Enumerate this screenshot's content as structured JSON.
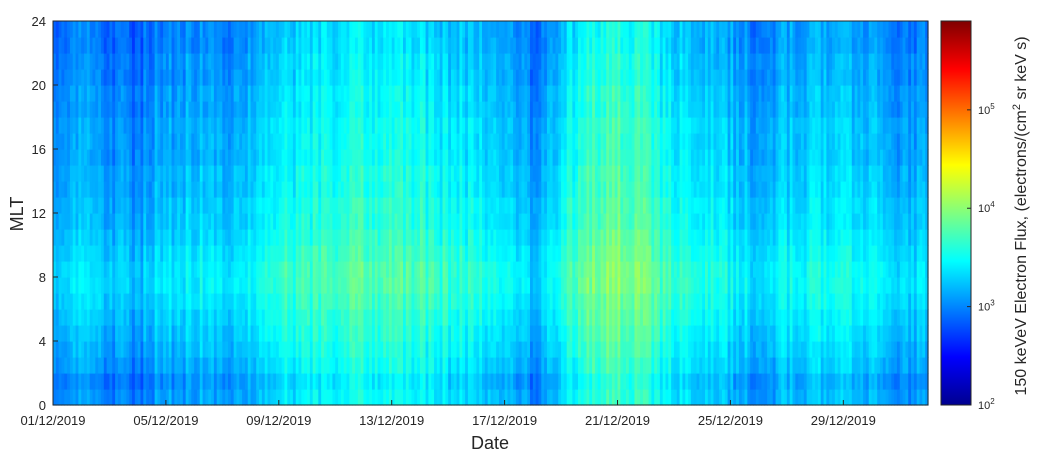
{
  "chart_data": {
    "type": "heatmap",
    "xlabel": "Date",
    "ylabel": "MLT",
    "x_tick_labels": [
      "01/12/2019",
      "05/12/2019",
      "09/12/2019",
      "13/12/2019",
      "17/12/2019",
      "21/12/2019",
      "25/12/2019",
      "29/12/2019"
    ],
    "x_ticks_days": [
      0,
      4,
      8,
      12,
      16,
      20,
      24,
      28
    ],
    "xlim_days": [
      0,
      31
    ],
    "y_ticks": [
      "0",
      "4",
      "8",
      "12",
      "16",
      "20",
      "24"
    ],
    "ylim": [
      0,
      24
    ],
    "colorbar": {
      "label_prefix": "150 keVeV Electron Flux, (electrons/(cm",
      "label_sup": "2",
      "label_suffix": " sr keV s)",
      "scale": "log",
      "range": [
        100,
        800000
      ],
      "tick_bases": [
        "10",
        "10",
        "10",
        "10"
      ],
      "tick_exponents": [
        "2",
        "3",
        "4",
        "5"
      ],
      "colormap": "jet"
    },
    "mean_log10_flux_by_day": [
      3.05,
      3.15,
      3.1,
      3.05,
      3.2,
      3.25,
      3.2,
      3.25,
      3.45,
      3.5,
      3.55,
      3.6,
      3.55,
      3.55,
      3.45,
      3.4,
      3.3,
      3.1,
      3.4,
      3.7,
      3.8,
      3.7,
      3.45,
      3.4,
      3.3,
      3.15,
      3.3,
      3.35,
      3.35,
      3.3,
      3.15
    ],
    "mlt_profile_delta_log10": [
      -0.1,
      -0.15,
      -0.05,
      0.0,
      0.05,
      0.1,
      0.15,
      0.2,
      0.2,
      0.15,
      0.1,
      0.05,
      0.05,
      0.0,
      0.0,
      -0.05,
      -0.05,
      -0.05,
      -0.1,
      -0.1,
      -0.15,
      -0.15,
      -0.2,
      -0.2
    ]
  }
}
